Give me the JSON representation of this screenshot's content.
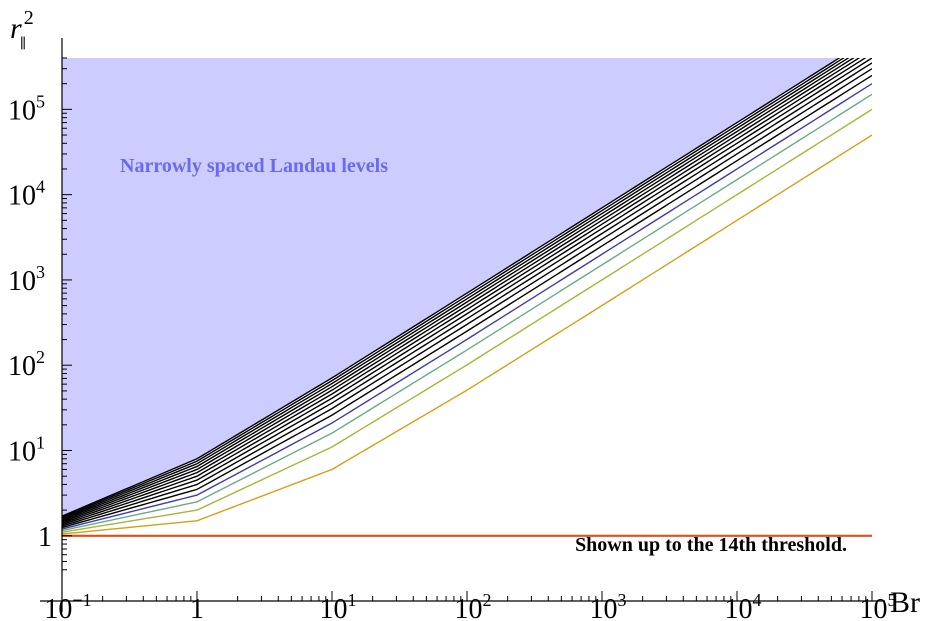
{
  "chart_data": {
    "type": "line",
    "title": "",
    "xlabel": "Br",
    "ylabel": "r∥²",
    "x_scale": "log",
    "y_scale": "log",
    "xlim": [
      0.1,
      100000
    ],
    "ylim": [
      0.32,
      400000
    ],
    "x_ticks": [
      {
        "base": "10",
        "exp": "−1",
        "value": 0.1
      },
      {
        "base": "1",
        "exp": "",
        "value": 1
      },
      {
        "base": "10",
        "exp": "1",
        "value": 10
      },
      {
        "base": "10",
        "exp": "2",
        "value": 100
      },
      {
        "base": "10",
        "exp": "3",
        "value": 1000
      },
      {
        "base": "10",
        "exp": "4",
        "value": 10000
      },
      {
        "base": "10",
        "exp": "5",
        "value": 100000
      }
    ],
    "y_ticks": [
      {
        "base": "1",
        "exp": "",
        "value": 1
      },
      {
        "base": "10",
        "exp": "1",
        "value": 10
      },
      {
        "base": "10",
        "exp": "2",
        "value": 100
      },
      {
        "base": "10",
        "exp": "3",
        "value": 1000
      },
      {
        "base": "10",
        "exp": "4",
        "value": 10000
      },
      {
        "base": "10",
        "exp": "5",
        "value": 100000
      }
    ],
    "grid": false,
    "region_fill_color": "#ccccff",
    "series": [
      {
        "color": "#e0501e",
        "values": [
          [
            0.1,
            1.0
          ],
          [
            1,
            1.0
          ],
          [
            10,
            1.0
          ],
          [
            100,
            1.0
          ],
          [
            1000,
            1.0
          ],
          [
            10000,
            1.0
          ],
          [
            100000,
            1.0
          ]
        ]
      },
      {
        "color": "#d4a017",
        "values": [
          [
            0.1,
            1.05
          ],
          [
            1,
            1.5
          ],
          [
            10,
            6.0
          ],
          [
            100,
            51
          ],
          [
            1000,
            501
          ],
          [
            10000,
            5001
          ],
          [
            100000,
            50001
          ]
        ]
      },
      {
        "color": "#a8b43c",
        "values": [
          [
            0.1,
            1.1
          ],
          [
            1,
            2.0
          ],
          [
            10,
            11
          ],
          [
            100,
            101
          ],
          [
            1000,
            1001
          ],
          [
            10000,
            10001
          ],
          [
            100000,
            100001
          ]
        ]
      },
      {
        "color": "#6aaa8a",
        "values": [
          [
            0.1,
            1.15
          ],
          [
            1,
            2.5
          ],
          [
            10,
            16
          ],
          [
            100,
            151
          ],
          [
            1000,
            1501
          ],
          [
            10000,
            15001
          ],
          [
            100000,
            150001
          ]
        ]
      },
      {
        "color": "#3c3caa",
        "values": [
          [
            0.1,
            1.2
          ],
          [
            1,
            3.0
          ],
          [
            10,
            21
          ],
          [
            100,
            201
          ],
          [
            1000,
            2001
          ],
          [
            10000,
            20001
          ],
          [
            100000,
            200001
          ]
        ]
      },
      {
        "color": "#000000",
        "values": [
          [
            0.1,
            1.25
          ],
          [
            1,
            3.5
          ],
          [
            10,
            26
          ],
          [
            100,
            251
          ],
          [
            1000,
            2501
          ],
          [
            10000,
            25001
          ],
          [
            100000,
            250001
          ]
        ]
      },
      {
        "color": "#000000",
        "values": [
          [
            0.1,
            1.3
          ],
          [
            1,
            4.0
          ],
          [
            10,
            31
          ],
          [
            100,
            301
          ],
          [
            1000,
            3001
          ],
          [
            10000,
            30001
          ],
          [
            100000,
            300001
          ]
        ]
      },
      {
        "color": "#000000",
        "values": [
          [
            0.1,
            1.35
          ],
          [
            1,
            4.5
          ],
          [
            10,
            36
          ],
          [
            100,
            351
          ],
          [
            1000,
            3501
          ],
          [
            10000,
            35001
          ],
          [
            100000,
            350001
          ]
        ]
      },
      {
        "color": "#000000",
        "values": [
          [
            0.1,
            1.4
          ],
          [
            1,
            5.0
          ],
          [
            10,
            41
          ],
          [
            100,
            401
          ],
          [
            1000,
            4001
          ],
          [
            10000,
            40001
          ],
          [
            100000,
            400001
          ]
        ]
      },
      {
        "color": "#000000",
        "values": [
          [
            0.1,
            1.45
          ],
          [
            1,
            5.5
          ],
          [
            10,
            46
          ],
          [
            100,
            451
          ],
          [
            1000,
            4501
          ],
          [
            10000,
            45001
          ],
          [
            100000,
            450001
          ]
        ]
      },
      {
        "color": "#000000",
        "values": [
          [
            0.1,
            1.5
          ],
          [
            1,
            6.0
          ],
          [
            10,
            51
          ],
          [
            100,
            501
          ],
          [
            1000,
            5001
          ],
          [
            10000,
            50001
          ],
          [
            100000,
            500001
          ]
        ]
      },
      {
        "color": "#000000",
        "values": [
          [
            0.1,
            1.55
          ],
          [
            1,
            6.5
          ],
          [
            10,
            56
          ],
          [
            100,
            551
          ],
          [
            1000,
            5501
          ],
          [
            10000,
            55001
          ],
          [
            100000,
            550001
          ]
        ]
      },
      {
        "color": "#000000",
        "values": [
          [
            0.1,
            1.6
          ],
          [
            1,
            7.0
          ],
          [
            10,
            61
          ],
          [
            100,
            601
          ],
          [
            1000,
            6001
          ],
          [
            10000,
            60001
          ],
          [
            100000,
            600001
          ]
        ]
      },
      {
        "color": "#000000",
        "values": [
          [
            0.1,
            1.65
          ],
          [
            1,
            7.5
          ],
          [
            10,
            66
          ],
          [
            100,
            651
          ],
          [
            1000,
            6501
          ],
          [
            10000,
            65001
          ],
          [
            100000,
            650001
          ]
        ]
      },
      {
        "color": "#000000",
        "values": [
          [
            0.1,
            1.7
          ],
          [
            1,
            8.0
          ],
          [
            10,
            71
          ],
          [
            100,
            701
          ],
          [
            1000,
            7001
          ],
          [
            10000,
            70001
          ],
          [
            100000,
            700001
          ]
        ]
      }
    ],
    "annotations": [
      {
        "text": "Narrowly spaced Landau levels",
        "color": "#6a6aee",
        "position": "upper-left"
      },
      {
        "text": "Shown up to the 14th threshold.",
        "color": "#000000",
        "position": "bottom-right"
      }
    ]
  }
}
